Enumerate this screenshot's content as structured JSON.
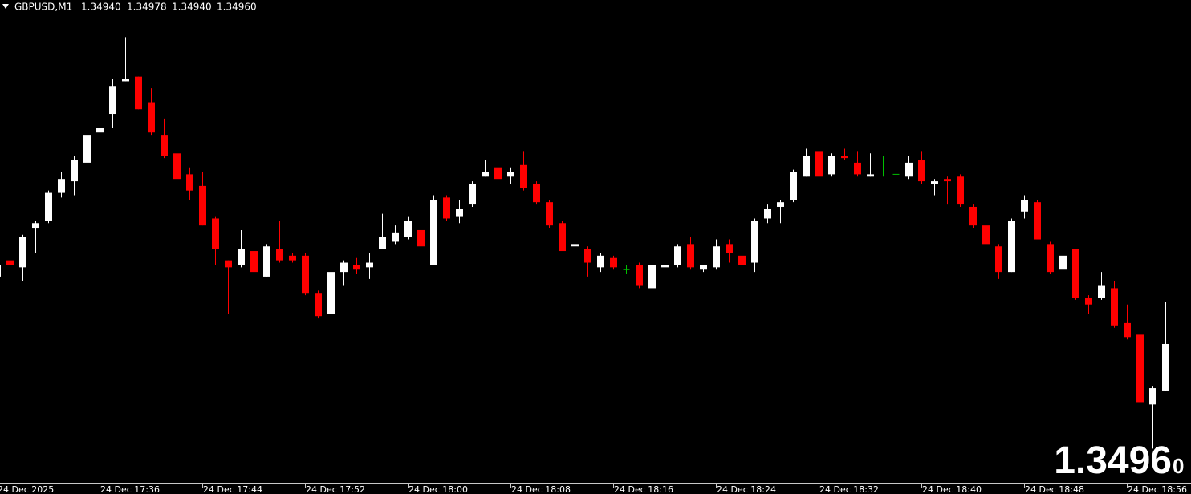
{
  "header": {
    "symbol": "GBPUSD,M1",
    "ohlc_text": [
      "1.34940",
      "1.34978",
      "1.34940",
      "1.34960"
    ]
  },
  "price_label": {
    "main": "1.3496",
    "last_digit": "0"
  },
  "chart_data": {
    "type": "candlestick",
    "categories": [
      "24 Dec 2025",
      null,
      null,
      null,
      null,
      null,
      null,
      null,
      "24 Dec 17:36",
      null,
      null,
      null,
      null,
      null,
      null,
      null,
      "24 Dec 17:44",
      null,
      null,
      null,
      null,
      null,
      null,
      null,
      "24 Dec 17:52",
      null,
      null,
      null,
      null,
      null,
      null,
      null,
      "24 Dec 18:00",
      null,
      null,
      null,
      null,
      null,
      null,
      null,
      "24 Dec 18:08",
      null,
      null,
      null,
      null,
      null,
      null,
      null,
      "24 Dec 18:16",
      null,
      null,
      null,
      null,
      null,
      null,
      null,
      "24 Dec 18:24",
      null,
      null,
      null,
      null,
      null,
      null,
      null,
      "24 Dec 18:32",
      null,
      null,
      null,
      null,
      null,
      null,
      null,
      "24 Dec 18:40",
      null,
      null,
      null,
      null,
      null,
      null,
      null,
      "24 Dec 18:48",
      null,
      null,
      null,
      null,
      null,
      null,
      null,
      "24 Dec 18:56",
      null,
      null,
      null
    ],
    "open": [
      1.34989,
      1.34996,
      1.34993,
      1.3501,
      1.35013,
      1.35025,
      1.3503,
      1.35038,
      1.35051,
      1.35059,
      1.35073,
      1.35075,
      1.35064,
      1.3505,
      1.35042,
      1.35033,
      1.35028,
      1.35014,
      1.34996,
      1.34994,
      1.35,
      1.34989,
      1.35001,
      1.34998,
      1.34998,
      1.34982,
      1.34973,
      1.34991,
      1.34994,
      1.34993,
      1.35001,
      1.35004,
      1.35006,
      1.35009,
      1.34994,
      1.35023,
      1.35015,
      1.3502,
      1.35032,
      1.35036,
      1.35032,
      1.35037,
      1.35029,
      1.35021,
      1.35012,
      1.35002,
      1.35001,
      1.34993,
      1.34997,
      1.34992,
      1.34994,
      1.34984,
      1.34993,
      1.34994,
      1.35003,
      1.34992,
      1.34993,
      1.35003,
      1.34998,
      1.34995,
      1.35014,
      1.35019,
      1.35022,
      1.35032,
      1.35043,
      1.35033,
      1.35041,
      1.35038,
      1.35032,
      1.35034,
      1.35033,
      1.35032,
      1.35039,
      1.35029,
      1.35031,
      1.35032,
      1.35019,
      1.35011,
      1.35002,
      1.34991,
      1.35017,
      1.35021,
      1.35003,
      1.34992,
      1.35001,
      1.3498,
      1.3498,
      1.34984,
      1.34969,
      1.34964,
      1.34934,
      1.3494
    ],
    "high": [
      1.34995,
      1.34997,
      1.35007,
      1.35013,
      1.35026,
      1.35034,
      1.35041,
      1.35054,
      1.35053,
      1.35074,
      1.35092,
      1.35075,
      1.3507,
      1.35057,
      1.35043,
      1.35036,
      1.35034,
      1.35015,
      1.34996,
      1.35009,
      1.35003,
      1.35003,
      1.35013,
      1.34999,
      1.34999,
      1.34983,
      1.34992,
      1.34996,
      1.34997,
      1.34999,
      1.35016,
      1.35011,
      1.35015,
      1.35012,
      1.35024,
      1.35024,
      1.35022,
      1.3503,
      1.35039,
      1.35045,
      1.35036,
      1.35043,
      1.3503,
      1.35022,
      1.35013,
      1.35005,
      1.35002,
      1.34999,
      1.34998,
      1.34994,
      1.34995,
      1.34995,
      1.34996,
      1.35003,
      1.35006,
      1.34994,
      1.35005,
      1.35005,
      1.34999,
      1.35014,
      1.3502,
      1.35022,
      1.35035,
      1.35044,
      1.35044,
      1.35042,
      1.35044,
      1.35043,
      1.35042,
      1.35041,
      1.35041,
      1.35041,
      1.35043,
      1.35031,
      1.35032,
      1.35033,
      1.3502,
      1.35012,
      1.35003,
      1.35014,
      1.35024,
      1.35022,
      1.35004,
      1.35001,
      1.35001,
      1.34981,
      1.34991,
      1.34987,
      1.34977,
      1.34964,
      1.34942,
      1.34978
    ],
    "low": [
      1.34988,
      1.34993,
      1.34987,
      1.34999,
      1.35012,
      1.35023,
      1.35024,
      1.35038,
      1.35041,
      1.35053,
      1.35073,
      1.35061,
      1.3505,
      1.3504,
      1.3502,
      1.35022,
      1.35011,
      1.34994,
      1.34973,
      1.34993,
      1.3499,
      1.34989,
      1.34995,
      1.34995,
      1.34981,
      1.34971,
      1.34972,
      1.34985,
      1.3499,
      1.34988,
      1.35001,
      1.35003,
      1.35005,
      1.35001,
      1.34994,
      1.35013,
      1.35012,
      1.35019,
      1.35032,
      1.3503,
      1.35029,
      1.35026,
      1.3502,
      1.3501,
      1.35,
      1.34991,
      1.34989,
      1.34991,
      1.34992,
      1.3499,
      1.34984,
      1.34983,
      1.34983,
      1.34993,
      1.34992,
      1.34991,
      1.34992,
      1.34995,
      1.34993,
      1.34991,
      1.35012,
      1.35012,
      1.35021,
      1.35032,
      1.35032,
      1.35032,
      1.35039,
      1.35032,
      1.35032,
      1.35032,
      1.35032,
      1.35031,
      1.35029,
      1.35024,
      1.3502,
      1.35019,
      1.3501,
      1.35001,
      1.34988,
      1.34991,
      1.35014,
      1.35005,
      1.3499,
      1.34992,
      1.34979,
      1.34973,
      1.34979,
      1.34967,
      1.34962,
      1.34935,
      1.34915,
      1.3494
    ],
    "close": [
      1.34994,
      1.34994,
      1.35006,
      1.35012,
      1.35025,
      1.35031,
      1.35039,
      1.3505,
      1.35053,
      1.35071,
      1.35074,
      1.35061,
      1.35051,
      1.35041,
      1.35031,
      1.35026,
      1.35011,
      1.35001,
      1.34993,
      1.35001,
      1.34991,
      1.35002,
      1.34996,
      1.34996,
      1.34982,
      1.34972,
      1.34991,
      1.34995,
      1.34992,
      1.34995,
      1.35006,
      1.35008,
      1.35013,
      1.35002,
      1.35022,
      1.35014,
      1.35018,
      1.35029,
      1.35034,
      1.35031,
      1.35034,
      1.35027,
      1.35021,
      1.35011,
      1.35,
      1.35003,
      1.34995,
      1.34998,
      1.34993,
      1.34992,
      1.34985,
      1.34994,
      1.34994,
      1.35002,
      1.34993,
      1.34994,
      1.35002,
      1.34999,
      1.34994,
      1.35013,
      1.35018,
      1.35021,
      1.35034,
      1.35041,
      1.35032,
      1.35041,
      1.3504,
      1.35033,
      1.35033,
      1.35034,
      1.35033,
      1.35038,
      1.3503,
      1.3503,
      1.3503,
      1.3502,
      1.35011,
      1.35003,
      1.34991,
      1.35013,
      1.35022,
      1.35005,
      1.34991,
      1.34998,
      1.3498,
      1.34977,
      1.34985,
      1.34968,
      1.34963,
      1.34935,
      1.34941,
      1.3496
    ],
    "ylim": [
      1.34901,
      1.35108
    ],
    "up_color": "#ffffff",
    "down_color": "#ff0000",
    "doji_color": "#00c000"
  }
}
